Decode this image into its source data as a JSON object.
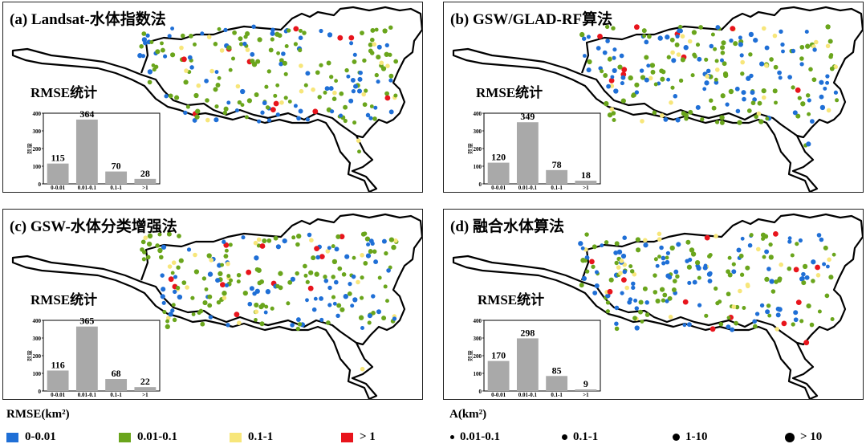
{
  "colors": {
    "c1": "#1f6fd6",
    "c2": "#6aa51c",
    "c3": "#f7e67a",
    "c4": "#e8141c",
    "bar": "#a9a9a9"
  },
  "panels": [
    {
      "id": "a",
      "title": "(a)  Landsat-水体指数法",
      "rmse_title": "RMSE统计",
      "chart_data": {
        "type": "bar",
        "categories": [
          "0-0.01",
          "0.01-0.1",
          "0.1-1",
          ">1"
        ],
        "values": [
          115,
          364,
          70,
          28
        ],
        "ylabel": "数量",
        "ylim": [
          0,
          400
        ],
        "yticks": [
          0,
          100,
          200,
          300,
          400
        ]
      }
    },
    {
      "id": "b",
      "title": "(b)  GSW/GLAD-RF算法",
      "rmse_title": "RMSE统计",
      "chart_data": {
        "type": "bar",
        "categories": [
          "0-0.01",
          "0.01-0.1",
          "0.1-1",
          ">1"
        ],
        "values": [
          120,
          349,
          78,
          18
        ],
        "ylabel": "数量",
        "ylim": [
          0,
          400
        ],
        "yticks": [
          0,
          100,
          200,
          300,
          400
        ]
      }
    },
    {
      "id": "c",
      "title": "(c)  GSW-水体分类增强法",
      "rmse_title": "RMSE统计",
      "chart_data": {
        "type": "bar",
        "categories": [
          "0-0.01",
          "0.01-0.1",
          "0.1-1",
          ">1"
        ],
        "values": [
          116,
          365,
          68,
          22
        ],
        "ylabel": "数量",
        "ylim": [
          0,
          400
        ],
        "yticks": [
          0,
          100,
          200,
          300,
          400
        ]
      }
    },
    {
      "id": "d",
      "title": "(d)  融合水体算法",
      "rmse_title": "RMSE统计",
      "chart_data": {
        "type": "bar",
        "categories": [
          "0-0.01",
          "0.01-0.1",
          "0.1-1",
          ">1"
        ],
        "values": [
          170,
          298,
          85,
          9
        ],
        "ylabel": "数量",
        "ylim": [
          0,
          400
        ],
        "yticks": [
          0,
          100,
          200,
          300,
          400
        ]
      }
    }
  ],
  "legend": {
    "rmse_title": "RMSE(km²)",
    "rmse_items": [
      "0-0.01",
      "0.01-0.1",
      "0.1-1",
      "> 1"
    ],
    "area_title": "A(km²)",
    "area_items": [
      "0.01-0.1",
      "0.1-1",
      "1-10",
      "> 10"
    ]
  }
}
